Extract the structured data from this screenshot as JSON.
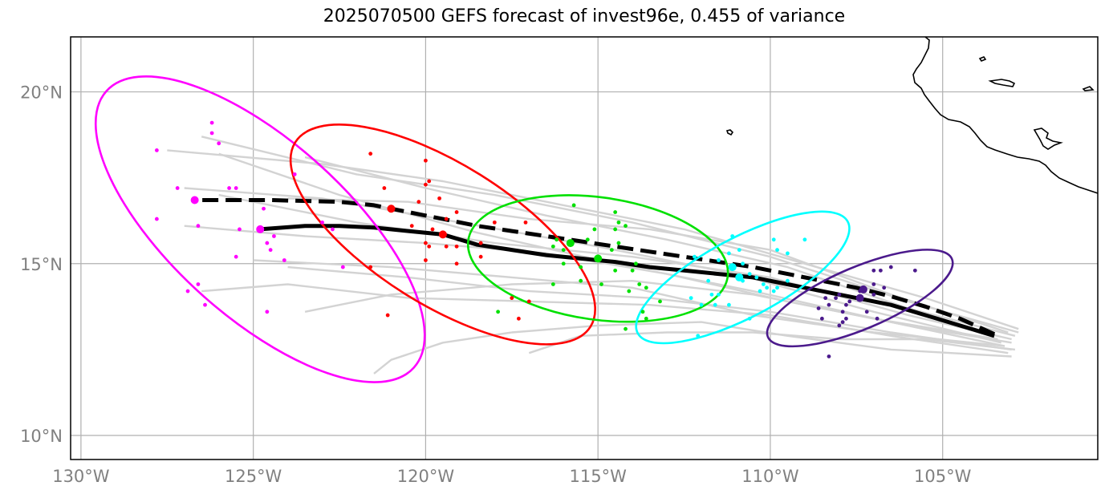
{
  "chart_data": {
    "type": "map-track",
    "title": "2025070500 GEFS forecast of invest96e, 0.455 of variance",
    "xlim": [
      -130.3,
      -100.5
    ],
    "ylim": [
      9.3,
      21.6
    ],
    "x_ticks": [
      -130,
      -125,
      -120,
      -115,
      -110,
      -105
    ],
    "x_tick_labels": [
      "130°W",
      "125°W",
      "120°W",
      "115°W",
      "110°W",
      "105°W"
    ],
    "y_ticks": [
      10,
      15,
      20
    ],
    "y_tick_labels": [
      "10°N",
      "15°N",
      "20°N"
    ],
    "grid": true,
    "colors": {
      "member_tracks": "#d3d3d3",
      "mean_track": "#000000",
      "times": [
        "#ff00ff",
        "#ff0000",
        "#00e000",
        "#00ffff",
        "#4b1a8c"
      ]
    },
    "mean_track_solid": [
      [
        -103.5,
        12.9
      ],
      [
        -104.5,
        13.2
      ],
      [
        -105.5,
        13.5
      ],
      [
        -106.5,
        13.8
      ],
      [
        -107.5,
        14.0
      ],
      [
        -108.5,
        14.2
      ],
      [
        -109.5,
        14.4
      ],
      [
        -110.5,
        14.6
      ],
      [
        -111.5,
        14.7
      ],
      [
        -112.5,
        14.8
      ],
      [
        -113.5,
        14.9
      ],
      [
        -114.5,
        15.05
      ],
      [
        -115.5,
        15.15
      ],
      [
        -116.5,
        15.25
      ],
      [
        -117.5,
        15.4
      ],
      [
        -118.5,
        15.55
      ],
      [
        -119.5,
        15.85
      ],
      [
        -120.5,
        15.95
      ],
      [
        -121.5,
        16.05
      ],
      [
        -122.5,
        16.1
      ],
      [
        -123.5,
        16.1
      ],
      [
        -124.8,
        16.0
      ]
    ],
    "mean_track_dashed": [
      [
        -103.5,
        12.95
      ],
      [
        -104.5,
        13.4
      ],
      [
        -105.5,
        13.75
      ],
      [
        -106.5,
        14.05
      ],
      [
        -107.5,
        14.3
      ],
      [
        -108.5,
        14.5
      ],
      [
        -109.5,
        14.7
      ],
      [
        -110.5,
        14.9
      ],
      [
        -111.5,
        15.05
      ],
      [
        -112.5,
        15.2
      ],
      [
        -113.5,
        15.35
      ],
      [
        -114.5,
        15.5
      ],
      [
        -115.5,
        15.65
      ],
      [
        -116.5,
        15.8
      ],
      [
        -117.5,
        15.95
      ],
      [
        -118.5,
        16.1
      ],
      [
        -119.5,
        16.3
      ],
      [
        -120.5,
        16.5
      ],
      [
        -121.5,
        16.7
      ],
      [
        -122.5,
        16.8
      ],
      [
        -124.5,
        16.85
      ],
      [
        -126.7,
        16.85
      ]
    ],
    "member_tracks": [
      [
        [
          -103.0,
          12.8
        ],
        [
          -106.0,
          13.5
        ],
        [
          -110.0,
          14.6
        ],
        [
          -114.0,
          15.2
        ],
        [
          -118.0,
          15.6
        ],
        [
          -122.0,
          16.2
        ],
        [
          -126.0,
          17.0
        ]
      ],
      [
        [
          -103.2,
          12.6
        ],
        [
          -106.5,
          13.3
        ],
        [
          -110.5,
          14.2
        ],
        [
          -114.5,
          15.0
        ],
        [
          -118.5,
          15.9
        ],
        [
          -122.5,
          17.0
        ],
        [
          -126.0,
          18.2
        ]
      ],
      [
        [
          -102.8,
          13.0
        ],
        [
          -106.0,
          13.9
        ],
        [
          -110.0,
          15.2
        ],
        [
          -114.0,
          16.2
        ],
        [
          -118.0,
          17.0
        ],
        [
          -122.0,
          17.6
        ],
        [
          -126.5,
          18.7
        ]
      ],
      [
        [
          -103.0,
          12.5
        ],
        [
          -106.5,
          13.0
        ],
        [
          -110.0,
          13.6
        ],
        [
          -113.5,
          14.0
        ],
        [
          -117.0,
          14.2
        ],
        [
          -120.5,
          14.6
        ],
        [
          -124.0,
          14.9
        ]
      ],
      [
        [
          -103.3,
          12.7
        ],
        [
          -107.0,
          13.6
        ],
        [
          -111.0,
          14.7
        ],
        [
          -115.0,
          15.5
        ],
        [
          -119.0,
          16.2
        ],
        [
          -123.0,
          16.9
        ],
        [
          -127.0,
          17.2
        ]
      ],
      [
        [
          -102.9,
          12.9
        ],
        [
          -106.0,
          13.7
        ],
        [
          -109.5,
          14.9
        ],
        [
          -113.0,
          15.7
        ],
        [
          -116.5,
          16.4
        ],
        [
          -120.0,
          17.2
        ],
        [
          -123.5,
          18.1
        ]
      ],
      [
        [
          -103.1,
          12.4
        ],
        [
          -106.5,
          12.9
        ],
        [
          -110.0,
          13.5
        ],
        [
          -113.5,
          13.8
        ],
        [
          -117.0,
          13.9
        ],
        [
          -120.5,
          14.0
        ],
        [
          -124.0,
          14.4
        ],
        [
          -126.5,
          14.2
        ]
      ],
      [
        [
          -103.0,
          12.3
        ],
        [
          -106.5,
          12.5
        ],
        [
          -109.5,
          12.9
        ],
        [
          -112.0,
          13.3
        ],
        [
          -115.0,
          13.2
        ],
        [
          -117.5,
          13.0
        ],
        [
          -119.5,
          12.7
        ],
        [
          -121.0,
          12.2
        ],
        [
          -121.5,
          11.8
        ]
      ],
      [
        [
          -103.2,
          12.6
        ],
        [
          -107.0,
          13.0
        ],
        [
          -110.5,
          13.5
        ],
        [
          -114.0,
          14.3
        ],
        [
          -117.5,
          14.6
        ],
        [
          -121.0,
          14.9
        ],
        [
          -125.0,
          15.1
        ]
      ],
      [
        [
          -102.8,
          13.1
        ],
        [
          -105.5,
          14.0
        ],
        [
          -109.0,
          15.0
        ],
        [
          -112.5,
          16.0
        ],
        [
          -116.0,
          16.7
        ],
        [
          -119.5,
          17.4
        ],
        [
          -123.0,
          17.9
        ],
        [
          -127.5,
          18.3
        ]
      ],
      [
        [
          -103.0,
          12.7
        ],
        [
          -106.0,
          13.2
        ],
        [
          -109.5,
          13.9
        ],
        [
          -113.0,
          14.7
        ],
        [
          -116.5,
          15.3
        ],
        [
          -120.0,
          15.6
        ],
        [
          -123.5,
          15.8
        ],
        [
          -127.0,
          16.1
        ]
      ],
      [
        [
          -103.4,
          12.8
        ],
        [
          -107.0,
          13.4
        ],
        [
          -110.5,
          14.1
        ],
        [
          -114.0,
          14.5
        ],
        [
          -117.5,
          14.4
        ],
        [
          -121.0,
          14.1
        ],
        [
          -123.5,
          13.6
        ]
      ],
      [
        [
          -102.9,
          12.5
        ],
        [
          -105.5,
          12.8
        ],
        [
          -108.0,
          12.8
        ],
        [
          -110.5,
          13.0
        ],
        [
          -113.0,
          13.0
        ],
        [
          -115.5,
          12.9
        ],
        [
          -117.0,
          12.4
        ]
      ],
      [
        [
          -103.1,
          13.0
        ],
        [
          -106.5,
          14.1
        ],
        [
          -110.0,
          15.4
        ],
        [
          -113.5,
          16.0
        ],
        [
          -117.0,
          16.3
        ],
        [
          -120.5,
          16.8
        ],
        [
          -124.0,
          16.9
        ]
      ]
    ],
    "ellipses": [
      {
        "center": [
          -124.8,
          16.0
        ],
        "rx": 6.0,
        "ry": 2.55,
        "rotate_deg": 42,
        "color": "#ff00ff"
      },
      {
        "center": [
          -119.5,
          15.85
        ],
        "rx": 5.05,
        "ry": 2.05,
        "rotate_deg": 32,
        "color": "#ff0000"
      },
      {
        "center": [
          -115.0,
          15.15
        ],
        "rx": 3.8,
        "ry": 1.78,
        "rotate_deg": 8,
        "color": "#00e000"
      },
      {
        "center": [
          -110.8,
          14.6
        ],
        "rx": 3.45,
        "ry": 1.15,
        "rotate_deg": -28,
        "color": "#00ffff"
      },
      {
        "center": [
          -107.4,
          14.0
        ],
        "rx": 2.9,
        "ry": 0.9,
        "rotate_deg": -23,
        "color": "#4b1a8c"
      }
    ],
    "big_dots": [
      {
        "lon": -124.8,
        "lat": 16.0,
        "color": "#ff00ff"
      },
      {
        "lon": -126.7,
        "lat": 16.85,
        "color": "#ff00ff"
      },
      {
        "lon": -119.5,
        "lat": 15.85,
        "color": "#ff0000"
      },
      {
        "lon": -121.0,
        "lat": 16.6,
        "color": "#ff0000"
      },
      {
        "lon": -115.0,
        "lat": 15.15,
        "color": "#00e000"
      },
      {
        "lon": -115.8,
        "lat": 15.6,
        "color": "#00e000"
      },
      {
        "lon": -110.9,
        "lat": 14.6,
        "color": "#00ffff"
      },
      {
        "lon": -111.1,
        "lat": 14.9,
        "color": "#00ffff"
      },
      {
        "lon": -107.4,
        "lat": 14.0,
        "color": "#4b1a8c"
      },
      {
        "lon": -107.3,
        "lat": 14.25,
        "color": "#4b1a8c"
      }
    ],
    "member_points": [
      {
        "color": "#ff00ff",
        "points": [
          [
            -126.2,
            19.1
          ],
          [
            -126.2,
            18.8
          ],
          [
            -126.0,
            18.5
          ],
          [
            -127.8,
            18.3
          ],
          [
            -127.2,
            17.2
          ],
          [
            -125.7,
            17.2
          ],
          [
            -125.5,
            17.2
          ],
          [
            -123.8,
            17.6
          ],
          [
            -124.7,
            16.6
          ],
          [
            -127.8,
            16.3
          ],
          [
            -126.6,
            16.1
          ],
          [
            -125.4,
            16.0
          ],
          [
            -123.0,
            16.2
          ],
          [
            -122.7,
            16.0
          ],
          [
            -124.4,
            15.8
          ],
          [
            -124.6,
            15.6
          ],
          [
            -124.5,
            15.4
          ],
          [
            -125.5,
            15.2
          ],
          [
            -124.1,
            15.1
          ],
          [
            -122.4,
            14.9
          ],
          [
            -126.6,
            14.4
          ],
          [
            -126.9,
            14.2
          ],
          [
            -126.4,
            13.8
          ],
          [
            -124.6,
            13.6
          ]
        ]
      },
      {
        "color": "#ff0000",
        "points": [
          [
            -121.6,
            18.2
          ],
          [
            -120.0,
            18.0
          ],
          [
            -120.0,
            17.3
          ],
          [
            -119.9,
            17.4
          ],
          [
            -119.6,
            16.9
          ],
          [
            -121.2,
            17.2
          ],
          [
            -120.2,
            16.8
          ],
          [
            -119.1,
            16.5
          ],
          [
            -119.4,
            16.3
          ],
          [
            -118.0,
            16.2
          ],
          [
            -117.1,
            16.2
          ],
          [
            -120.4,
            16.1
          ],
          [
            -119.8,
            16.0
          ],
          [
            -118.4,
            15.6
          ],
          [
            -120.0,
            15.6
          ],
          [
            -119.9,
            15.5
          ],
          [
            -119.4,
            15.5
          ],
          [
            -119.1,
            15.5
          ],
          [
            -118.4,
            15.2
          ],
          [
            -120.0,
            15.1
          ],
          [
            -119.1,
            15.0
          ],
          [
            -121.6,
            14.9
          ],
          [
            -117.5,
            14.0
          ],
          [
            -117.0,
            13.9
          ],
          [
            -117.3,
            13.4
          ],
          [
            -121.1,
            13.5
          ]
        ]
      },
      {
        "color": "#00e000",
        "points": [
          [
            -115.7,
            16.7
          ],
          [
            -114.5,
            16.5
          ],
          [
            -114.4,
            16.2
          ],
          [
            -114.2,
            16.1
          ],
          [
            -115.1,
            16.0
          ],
          [
            -114.5,
            16.0
          ],
          [
            -116.2,
            15.7
          ],
          [
            -115.3,
            15.7
          ],
          [
            -114.4,
            15.6
          ],
          [
            -116.3,
            15.5
          ],
          [
            -116.0,
            15.4
          ],
          [
            -114.6,
            15.4
          ],
          [
            -113.9,
            15.0
          ],
          [
            -116.0,
            15.0
          ],
          [
            -114.5,
            14.8
          ],
          [
            -115.5,
            14.9
          ],
          [
            -114.0,
            14.8
          ],
          [
            -115.5,
            14.5
          ],
          [
            -114.9,
            14.4
          ],
          [
            -113.8,
            14.4
          ],
          [
            -116.3,
            14.4
          ],
          [
            -113.6,
            14.3
          ],
          [
            -114.1,
            14.2
          ],
          [
            -113.2,
            13.9
          ],
          [
            -113.7,
            13.6
          ],
          [
            -113.6,
            13.4
          ],
          [
            -117.9,
            13.6
          ],
          [
            -114.2,
            13.1
          ]
        ]
      },
      {
        "color": "#00ffff",
        "points": [
          [
            -109.9,
            15.7
          ],
          [
            -109.0,
            15.7
          ],
          [
            -111.1,
            15.8
          ],
          [
            -110.9,
            15.4
          ],
          [
            -109.8,
            15.4
          ],
          [
            -109.5,
            15.3
          ],
          [
            -111.2,
            15.3
          ],
          [
            -112.2,
            15.2
          ],
          [
            -111.5,
            15.1
          ],
          [
            -110.8,
            15.0
          ],
          [
            -110.6,
            14.7
          ],
          [
            -110.4,
            14.6
          ],
          [
            -109.5,
            14.5
          ],
          [
            -110.2,
            14.4
          ],
          [
            -109.8,
            14.3
          ],
          [
            -110.1,
            14.3
          ],
          [
            -110.3,
            14.2
          ],
          [
            -109.9,
            14.2
          ],
          [
            -110.8,
            14.5
          ],
          [
            -111.8,
            14.5
          ],
          [
            -111.5,
            14.1
          ],
          [
            -111.7,
            14.1
          ],
          [
            -111.2,
            13.8
          ],
          [
            -111.6,
            13.8
          ],
          [
            -112.0,
            13.8
          ],
          [
            -112.3,
            14.0
          ],
          [
            -110.6,
            13.4
          ],
          [
            -112.1,
            12.9
          ]
        ]
      },
      {
        "color": "#4b1a8c",
        "points": [
          [
            -105.8,
            14.8
          ],
          [
            -106.5,
            14.9
          ],
          [
            -107.0,
            14.8
          ],
          [
            -106.8,
            14.8
          ],
          [
            -107.0,
            14.4
          ],
          [
            -106.7,
            14.3
          ],
          [
            -107.3,
            14.3
          ],
          [
            -107.4,
            14.2
          ],
          [
            -107.0,
            14.1
          ],
          [
            -108.0,
            14.1
          ],
          [
            -108.1,
            14.0
          ],
          [
            -108.4,
            14.0
          ],
          [
            -108.3,
            13.8
          ],
          [
            -107.7,
            13.9
          ],
          [
            -107.9,
            13.6
          ],
          [
            -107.2,
            13.6
          ],
          [
            -107.8,
            13.4
          ],
          [
            -107.9,
            13.3
          ],
          [
            -106.9,
            13.4
          ],
          [
            -108.0,
            13.2
          ],
          [
            -108.5,
            13.4
          ],
          [
            -107.8,
            13.8
          ],
          [
            -108.6,
            13.7
          ],
          [
            -108.3,
            12.3
          ]
        ]
      }
    ]
  }
}
